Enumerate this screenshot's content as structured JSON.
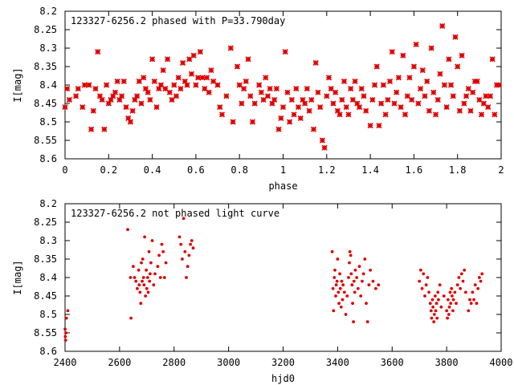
{
  "colors": {
    "points": "#e00000",
    "axes": "#000000"
  },
  "chart_data": [
    {
      "type": "scatter",
      "title": "123327-6256.2 phased with P=33.790day",
      "xlabel": "phase",
      "ylabel": "I[mag]",
      "xlim": [
        0,
        2
      ],
      "ylim": [
        8.2,
        8.6
      ],
      "y_inverted": true,
      "xticks": [
        "0",
        "0.2",
        "0.4",
        "0.6",
        "0.8",
        "1",
        "1.2",
        "1.4",
        "1.6",
        "1.8",
        "2"
      ],
      "yticks": [
        "8.2",
        "8.25",
        "8.3",
        "8.35",
        "8.4",
        "8.45",
        "8.5",
        "8.55",
        "8.6"
      ],
      "points": [
        [
          0.0,
          8.46
        ],
        [
          0.01,
          8.41
        ],
        [
          0.02,
          8.44
        ],
        [
          0.05,
          8.43
        ],
        [
          0.06,
          8.41
        ],
        [
          0.08,
          8.46
        ],
        [
          0.09,
          8.4
        ],
        [
          0.11,
          8.4
        ],
        [
          0.12,
          8.52
        ],
        [
          0.13,
          8.47
        ],
        [
          0.14,
          8.41
        ],
        [
          0.15,
          8.31
        ],
        [
          0.16,
          8.43
        ],
        [
          0.17,
          8.44
        ],
        [
          0.18,
          8.52
        ],
        [
          0.19,
          8.4
        ],
        [
          0.2,
          8.45
        ],
        [
          0.21,
          8.44
        ],
        [
          0.22,
          8.43
        ],
        [
          0.23,
          8.42
        ],
        [
          0.24,
          8.39
        ],
        [
          0.25,
          8.44
        ],
        [
          0.26,
          8.43
        ],
        [
          0.27,
          8.39
        ],
        [
          0.28,
          8.46
        ],
        [
          0.29,
          8.49
        ],
        [
          0.3,
          8.5
        ],
        [
          0.31,
          8.47
        ],
        [
          0.32,
          8.44
        ],
        [
          0.33,
          8.43
        ],
        [
          0.34,
          8.39
        ],
        [
          0.35,
          8.45
        ],
        [
          0.36,
          8.38
        ],
        [
          0.37,
          8.41
        ],
        [
          0.38,
          8.42
        ],
        [
          0.39,
          8.44
        ],
        [
          0.4,
          8.33
        ],
        [
          0.41,
          8.39
        ],
        [
          0.42,
          8.46
        ],
        [
          0.43,
          8.41
        ],
        [
          0.44,
          8.4
        ],
        [
          0.45,
          8.36
        ],
        [
          0.46,
          8.41
        ],
        [
          0.47,
          8.33
        ],
        [
          0.48,
          8.42
        ],
        [
          0.49,
          8.44
        ],
        [
          0.5,
          8.4
        ],
        [
          0.51,
          8.43
        ],
        [
          0.52,
          8.38
        ],
        [
          0.53,
          8.41
        ],
        [
          0.54,
          8.34
        ],
        [
          0.55,
          8.39
        ],
        [
          0.56,
          8.4
        ],
        [
          0.57,
          8.33
        ],
        [
          0.58,
          8.37
        ],
        [
          0.59,
          8.32
        ],
        [
          0.6,
          8.4
        ],
        [
          0.61,
          8.38
        ],
        [
          0.62,
          8.31
        ],
        [
          0.63,
          8.38
        ],
        [
          0.64,
          8.41
        ],
        [
          0.65,
          8.38
        ],
        [
          0.66,
          8.42
        ],
        [
          0.67,
          8.36
        ],
        [
          0.68,
          8.39
        ],
        [
          0.7,
          8.4
        ],
        [
          0.71,
          8.46
        ],
        [
          0.72,
          8.48
        ],
        [
          0.74,
          8.43
        ],
        [
          0.76,
          8.3
        ],
        [
          0.77,
          8.5
        ],
        [
          0.79,
          8.35
        ],
        [
          0.8,
          8.4
        ],
        [
          0.81,
          8.45
        ],
        [
          0.82,
          8.41
        ],
        [
          0.83,
          8.39
        ],
        [
          0.84,
          8.33
        ],
        [
          0.85,
          8.43
        ],
        [
          0.86,
          8.5
        ],
        [
          0.87,
          8.45
        ],
        [
          0.89,
          8.4
        ],
        [
          0.9,
          8.42
        ],
        [
          0.91,
          8.44
        ],
        [
          0.92,
          8.38
        ],
        [
          0.93,
          8.43
        ],
        [
          0.94,
          8.41
        ],
        [
          0.95,
          8.45
        ],
        [
          0.96,
          8.44
        ],
        [
          0.97,
          8.41
        ],
        [
          0.98,
          8.52
        ],
        [
          0.99,
          8.49
        ],
        [
          1.0,
          8.46
        ],
        [
          1.01,
          8.31
        ],
        [
          1.02,
          8.42
        ],
        [
          1.03,
          8.5
        ],
        [
          1.04,
          8.44
        ],
        [
          1.05,
          8.48
        ],
        [
          1.06,
          8.41
        ],
        [
          1.07,
          8.46
        ],
        [
          1.08,
          8.49
        ],
        [
          1.09,
          8.44
        ],
        [
          1.1,
          8.45
        ],
        [
          1.11,
          8.41
        ],
        [
          1.12,
          8.47
        ],
        [
          1.13,
          8.44
        ],
        [
          1.14,
          8.52
        ],
        [
          1.15,
          8.34
        ],
        [
          1.16,
          8.42
        ],
        [
          1.17,
          8.46
        ],
        [
          1.18,
          8.55
        ],
        [
          1.19,
          8.57
        ],
        [
          1.2,
          8.43
        ],
        [
          1.21,
          8.38
        ],
        [
          1.22,
          8.41
        ],
        [
          1.23,
          8.45
        ],
        [
          1.24,
          8.42
        ],
        [
          1.25,
          8.47
        ],
        [
          1.26,
          8.48
        ],
        [
          1.27,
          8.44
        ],
        [
          1.28,
          8.39
        ],
        [
          1.29,
          8.46
        ],
        [
          1.3,
          8.48
        ],
        [
          1.31,
          8.41
        ],
        [
          1.32,
          8.44
        ],
        [
          1.33,
          8.39
        ],
        [
          1.34,
          8.45
        ],
        [
          1.35,
          8.46
        ],
        [
          1.36,
          8.41
        ],
        [
          1.37,
          8.43
        ],
        [
          1.38,
          8.47
        ],
        [
          1.4,
          8.51
        ],
        [
          1.41,
          8.44
        ],
        [
          1.42,
          8.4
        ],
        [
          1.43,
          8.35
        ],
        [
          1.44,
          8.51
        ],
        [
          1.45,
          8.45
        ],
        [
          1.46,
          8.4
        ],
        [
          1.47,
          8.48
        ],
        [
          1.48,
          8.44
        ],
        [
          1.49,
          8.39
        ],
        [
          1.5,
          8.31
        ],
        [
          1.51,
          8.45
        ],
        [
          1.52,
          8.42
        ],
        [
          1.53,
          8.38
        ],
        [
          1.54,
          8.46
        ],
        [
          1.55,
          8.32
        ],
        [
          1.56,
          8.48
        ],
        [
          1.57,
          8.43
        ],
        [
          1.58,
          8.38
        ],
        [
          1.59,
          8.44
        ],
        [
          1.6,
          8.35
        ],
        [
          1.61,
          8.29
        ],
        [
          1.62,
          8.45
        ],
        [
          1.63,
          8.41
        ],
        [
          1.64,
          8.36
        ],
        [
          1.65,
          8.43
        ],
        [
          1.66,
          8.39
        ],
        [
          1.67,
          8.47
        ],
        [
          1.68,
          8.3
        ],
        [
          1.69,
          8.42
        ],
        [
          1.7,
          8.48
        ],
        [
          1.71,
          8.44
        ],
        [
          1.72,
          8.37
        ],
        [
          1.73,
          8.24
        ],
        [
          1.74,
          8.4
        ],
        [
          1.75,
          8.46
        ],
        [
          1.76,
          8.33
        ],
        [
          1.77,
          8.4
        ],
        [
          1.78,
          8.43
        ],
        [
          1.79,
          8.27
        ],
        [
          1.8,
          8.35
        ],
        [
          1.81,
          8.47
        ],
        [
          1.82,
          8.32
        ],
        [
          1.83,
          8.45
        ],
        [
          1.84,
          8.43
        ],
        [
          1.85,
          8.41
        ],
        [
          1.86,
          8.47
        ],
        [
          1.87,
          8.42
        ],
        [
          1.88,
          8.39
        ],
        [
          1.89,
          8.39
        ],
        [
          1.9,
          8.44
        ],
        [
          1.91,
          8.48
        ],
        [
          1.92,
          8.45
        ],
        [
          1.93,
          8.43
        ],
        [
          1.94,
          8.46
        ],
        [
          1.95,
          8.43
        ],
        [
          1.96,
          8.33
        ],
        [
          1.97,
          8.48
        ],
        [
          1.98,
          8.4
        ],
        [
          1.99,
          8.4
        ]
      ]
    },
    {
      "type": "scatter",
      "title": "123327-6256.2 not phased light curve",
      "xlabel": "hjd0",
      "ylabel": "I[mag]",
      "xlim": [
        2400,
        4000
      ],
      "ylim": [
        8.2,
        8.6
      ],
      "y_inverted": true,
      "xticks": [
        "2400",
        "2600",
        "2800",
        "3000",
        "3200",
        "3400",
        "3600",
        "3800",
        "4000"
      ],
      "yticks": [
        "8.2",
        "8.25",
        "8.3",
        "8.35",
        "8.4",
        "8.45",
        "8.5",
        "8.55",
        "8.6"
      ],
      "points": [
        [
          2400,
          8.54
        ],
        [
          2401,
          8.56
        ],
        [
          2402,
          8.57
        ],
        [
          2403,
          8.55
        ],
        [
          2405,
          8.51
        ],
        [
          2410,
          8.49
        ],
        [
          2630,
          8.27
        ],
        [
          2640,
          8.4
        ],
        [
          2642,
          8.51
        ],
        [
          2650,
          8.37
        ],
        [
          2655,
          8.4
        ],
        [
          2660,
          8.41
        ],
        [
          2665,
          8.43
        ],
        [
          2670,
          8.38
        ],
        [
          2672,
          8.42
        ],
        [
          2675,
          8.44
        ],
        [
          2678,
          8.47
        ],
        [
          2680,
          8.36
        ],
        [
          2683,
          8.41
        ],
        [
          2685,
          8.35
        ],
        [
          2688,
          8.4
        ],
        [
          2690,
          8.42
        ],
        [
          2692,
          8.29
        ],
        [
          2695,
          8.45
        ],
        [
          2698,
          8.38
        ],
        [
          2700,
          8.43
        ],
        [
          2703,
          8.4
        ],
        [
          2705,
          8.44
        ],
        [
          2708,
          8.33
        ],
        [
          2710,
          8.41
        ],
        [
          2712,
          8.39
        ],
        [
          2715,
          8.36
        ],
        [
          2720,
          8.3
        ],
        [
          2725,
          8.42
        ],
        [
          2730,
          8.39
        ],
        [
          2740,
          8.37
        ],
        [
          2745,
          8.34
        ],
        [
          2750,
          8.4
        ],
        [
          2755,
          8.31
        ],
        [
          2760,
          8.33
        ],
        [
          2765,
          8.4
        ],
        [
          2770,
          8.36
        ],
        [
          2820,
          8.29
        ],
        [
          2825,
          8.31
        ],
        [
          2830,
          8.35
        ],
        [
          2835,
          8.24
        ],
        [
          2840,
          8.33
        ],
        [
          2845,
          8.4
        ],
        [
          2850,
          8.37
        ],
        [
          2855,
          8.34
        ],
        [
          2860,
          8.31
        ],
        [
          2865,
          8.3
        ],
        [
          2870,
          8.32
        ],
        [
          3380,
          8.33
        ],
        [
          3383,
          8.43
        ],
        [
          3385,
          8.49
        ],
        [
          3388,
          8.4
        ],
        [
          3390,
          8.38
        ],
        [
          3393,
          8.45
        ],
        [
          3395,
          8.42
        ],
        [
          3398,
          8.41
        ],
        [
          3400,
          8.35
        ],
        [
          3403,
          8.44
        ],
        [
          3405,
          8.47
        ],
        [
          3408,
          8.39
        ],
        [
          3410,
          8.43
        ],
        [
          3413,
          8.48
        ],
        [
          3415,
          8.41
        ],
        [
          3418,
          8.46
        ],
        [
          3420,
          8.42
        ],
        [
          3425,
          8.44
        ],
        [
          3430,
          8.5
        ],
        [
          3435,
          8.45
        ],
        [
          3440,
          8.4
        ],
        [
          3443,
          8.36
        ],
        [
          3445,
          8.33
        ],
        [
          3448,
          8.34
        ],
        [
          3450,
          8.39
        ],
        [
          3453,
          8.42
        ],
        [
          3455,
          8.47
        ],
        [
          3458,
          8.52
        ],
        [
          3460,
          8.41
        ],
        [
          3463,
          8.44
        ],
        [
          3465,
          8.38
        ],
        [
          3470,
          8.4
        ],
        [
          3475,
          8.43
        ],
        [
          3480,
          8.37
        ],
        [
          3485,
          8.45
        ],
        [
          3490,
          8.41
        ],
        [
          3495,
          8.39
        ],
        [
          3500,
          8.35
        ],
        [
          3505,
          8.47
        ],
        [
          3510,
          8.52
        ],
        [
          3515,
          8.42
        ],
        [
          3520,
          8.38
        ],
        [
          3530,
          8.41
        ],
        [
          3540,
          8.43
        ],
        [
          3550,
          8.42
        ],
        [
          3700,
          8.41
        ],
        [
          3705,
          8.38
        ],
        [
          3710,
          8.43
        ],
        [
          3715,
          8.39
        ],
        [
          3720,
          8.45
        ],
        [
          3725,
          8.42
        ],
        [
          3730,
          8.4
        ],
        [
          3735,
          8.44
        ],
        [
          3740,
          8.47
        ],
        [
          3743,
          8.49
        ],
        [
          3745,
          8.51
        ],
        [
          3748,
          8.46
        ],
        [
          3750,
          8.48
        ],
        [
          3753,
          8.52
        ],
        [
          3755,
          8.5
        ],
        [
          3758,
          8.45
        ],
        [
          3760,
          8.49
        ],
        [
          3763,
          8.47
        ],
        [
          3765,
          8.51
        ],
        [
          3768,
          8.44
        ],
        [
          3770,
          8.46
        ],
        [
          3775,
          8.42
        ],
        [
          3780,
          8.48
        ],
        [
          3790,
          8.45
        ],
        [
          3800,
          8.49
        ],
        [
          3803,
          8.51
        ],
        [
          3805,
          8.46
        ],
        [
          3808,
          8.5
        ],
        [
          3810,
          8.48
        ],
        [
          3813,
          8.44
        ],
        [
          3815,
          8.47
        ],
        [
          3818,
          8.43
        ],
        [
          3820,
          8.45
        ],
        [
          3823,
          8.49
        ],
        [
          3825,
          8.46
        ],
        [
          3830,
          8.44
        ],
        [
          3835,
          8.47
        ],
        [
          3840,
          8.42
        ],
        [
          3845,
          8.4
        ],
        [
          3850,
          8.43
        ],
        [
          3855,
          8.39
        ],
        [
          3860,
          8.41
        ],
        [
          3865,
          8.38
        ],
        [
          3870,
          8.44
        ],
        [
          3880,
          8.49
        ],
        [
          3885,
          8.46
        ],
        [
          3890,
          8.47
        ],
        [
          3895,
          8.44
        ],
        [
          3900,
          8.46
        ],
        [
          3905,
          8.42
        ],
        [
          3910,
          8.47
        ],
        [
          3915,
          8.43
        ],
        [
          3920,
          8.4
        ],
        [
          3925,
          8.41
        ],
        [
          3930,
          8.39
        ]
      ]
    }
  ]
}
